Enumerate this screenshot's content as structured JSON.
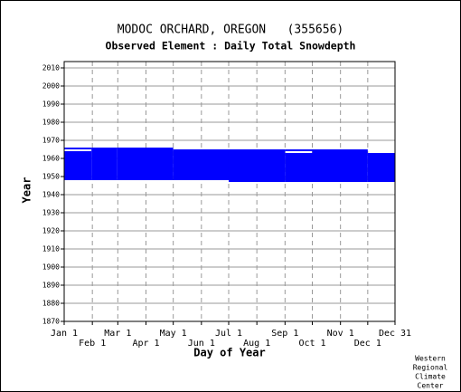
{
  "chart_data": {
    "type": "availability",
    "title": "MODOC ORCHARD, OREGON   (355656)",
    "subtitle": "Observed Element : Daily Total Snowdepth",
    "x_label": "Day of Year",
    "y_label": "Year",
    "credit": [
      "Western",
      "Regional",
      "Climate",
      "Center"
    ],
    "color": "#0000ff",
    "xlim": [
      1,
      365
    ],
    "ylim": [
      1870,
      2013.5
    ],
    "xticks": [
      {
        "value": 1,
        "label": "Jan 1"
      },
      {
        "value": 32,
        "label": "Feb 1"
      },
      {
        "value": 60,
        "label": "Mar 1"
      },
      {
        "value": 91,
        "label": "Apr 1"
      },
      {
        "value": 121,
        "label": "May 1"
      },
      {
        "value": 152,
        "label": "Jun 1"
      },
      {
        "value": 182,
        "label": "Jul 1"
      },
      {
        "value": 213,
        "label": "Aug 1"
      },
      {
        "value": 244,
        "label": "Sep 1"
      },
      {
        "value": 274,
        "label": "Oct 1"
      },
      {
        "value": 305,
        "label": "Nov 1"
      },
      {
        "value": 335,
        "label": "Dec 1"
      },
      {
        "value": 365,
        "label": "Dec 31"
      }
    ],
    "yticks": [
      1870,
      1880,
      1890,
      1900,
      1910,
      1920,
      1930,
      1940,
      1950,
      1960,
      1970,
      1980,
      1990,
      2000,
      2010
    ],
    "grid": true,
    "blocks": [
      {
        "x": [
          1,
          31
        ],
        "y": [
          1948,
          1964
        ]
      },
      {
        "x": [
          1,
          31
        ],
        "y": [
          1965,
          1966
        ]
      },
      {
        "x": [
          31,
          59
        ],
        "y": [
          1948,
          1966
        ]
      },
      {
        "x": [
          59,
          121
        ],
        "y": [
          1948,
          1966
        ]
      },
      {
        "x": [
          121,
          182
        ],
        "y": [
          1948,
          1965
        ]
      },
      {
        "x": [
          182,
          244
        ],
        "y": [
          1947,
          1965
        ]
      },
      {
        "x": [
          244,
          274
        ],
        "y": [
          1947,
          1963
        ]
      },
      {
        "x": [
          244,
          274
        ],
        "y": [
          1964,
          1965
        ]
      },
      {
        "x": [
          274,
          335
        ],
        "y": [
          1947,
          1965
        ]
      },
      {
        "x": [
          335,
          365
        ],
        "y": [
          1947,
          1963
        ]
      }
    ]
  }
}
